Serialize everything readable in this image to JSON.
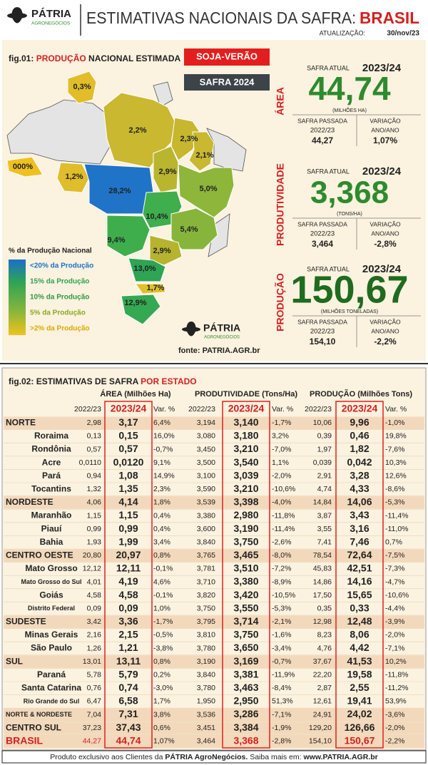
{
  "header": {
    "brand": "PÁTRIA",
    "brand_sub": "AGRONEGÓCIOS",
    "title": "ESTIMATIVAS NACIONAIS DA SAFRA:",
    "title_highlight": "BRASIL",
    "update_label": "ATUALIZAÇÃO:",
    "update_date": "30/nov/23"
  },
  "fig01": {
    "label": "fig.01:",
    "title_highlight": "PRODUÇÃO",
    "title": "NACIONAL ESTIMADA",
    "badge_crop": "SOJA-VERÃO",
    "badge_season": "SAFRA 2024",
    "map_labels": [
      "0,3%",
      "2,2%",
      "2,3%",
      "2,1%",
      "000%",
      "1,2%",
      "28,2%",
      "2,9%",
      "5,0%",
      "10,4%",
      "5,4%",
      "9,4%",
      "2,9%",
      "13,0%",
      "1,7%",
      "12,9%"
    ],
    "legend": {
      "title": "% da Produção Nacional",
      "items": [
        "<20% da Produção",
        "15% da Produção",
        "10% da Produção",
        "5% da Produção",
        ">2% da Produção"
      ]
    },
    "brand": "PÁTRIA",
    "brand_sub": "AGRONEGÓCIOS",
    "source": "fonte: PATRIA.AGR.br"
  },
  "summary": [
    {
      "section": "ÁREA",
      "current_label": "SAFRA ATUAL",
      "current_season": "2023/24",
      "current_value": "44,74",
      "unit": "(MILHÕES HA)",
      "previous_label": "SAFRA PASSADA",
      "previous_season": "2022/23",
      "previous_value": "44,27",
      "change_label": "VARIAÇÃO",
      "change_label2": "ANO/ANO",
      "change_value": "1,07%"
    },
    {
      "section": "PRODUTIVIDADE",
      "current_label": "SAFRA ATUAL",
      "current_season": "2023/24",
      "current_value": "3,368",
      "unit": "(TONS/HA)",
      "previous_label": "SAFRA PASSADA",
      "previous_season": "2022/23",
      "previous_value": "3,464",
      "change_label": "VARIAÇÃO",
      "change_label2": "ANO/ANO",
      "change_value": "-2,8%"
    },
    {
      "section": "PRODUÇÃO",
      "current_label": "SAFRA ATUAL",
      "current_season": "2023/24",
      "current_value": "150,67",
      "unit": "(MILHÕES TONELADAS)",
      "previous_label": "SAFRA PASSADA",
      "previous_season": "2022/23",
      "previous_value": "154,10",
      "change_label": "VARIAÇÃO",
      "change_label2": "ANO/ANO",
      "change_value": "-2,2%"
    }
  ],
  "fig02": {
    "label": "fig.02:",
    "title": "ESTIMATIVAS  DE SAFRA",
    "title_highlight": "POR ESTADO",
    "groups": [
      {
        "name": "ÁREA (Milhões Ha)",
        "columns": [
          "2022/23",
          "2023/24",
          "Var. %"
        ]
      },
      {
        "name": "PRODUTIVIDADE (Tons/Ha)",
        "columns": [
          "2022/23",
          "2023/24",
          "Var. %"
        ]
      },
      {
        "name": "PRODUÇÃO (Milhões Tons)",
        "columns": [
          "2022/23",
          "2023/24",
          "Var. %"
        ]
      }
    ],
    "rows": [
      [
        "NORTE",
        "2,98",
        "3,17",
        "6,4%",
        "3,194",
        "3,140",
        "-1,7%",
        "10,06",
        "9,96",
        "-1,0%"
      ],
      [
        "Roraima",
        "0,13",
        "0,15",
        "16,0%",
        "3,080",
        "3,180",
        "3,2%",
        "0,39",
        "0,46",
        "19,8%"
      ],
      [
        "Rondônia",
        "0,57",
        "0,57",
        "-0,7%",
        "3,450",
        "3,210",
        "-7,0%",
        "1,97",
        "1,82",
        "-7,6%"
      ],
      [
        "Acre",
        "0,0110",
        "0,0120",
        "9,1%",
        "3,500",
        "3,540",
        "1,1%",
        "0,039",
        "0,042",
        "10,3%"
      ],
      [
        "Pará",
        "0,94",
        "1,08",
        "14,9%",
        "3,100",
        "3,039",
        "-2,0%",
        "2,91",
        "3,28",
        "12,6%"
      ],
      [
        "Tocantins",
        "1,32",
        "1,35",
        "2,3%",
        "3,590",
        "3,210",
        "-10,6%",
        "4,74",
        "4,33",
        "-8,6%"
      ],
      [
        "NORDESTE",
        "4,06",
        "4,14",
        "1,8%",
        "3,539",
        "3,398",
        "-4,0%",
        "14,84",
        "14,06",
        "-5,3%"
      ],
      [
        "Maranhão",
        "1,15",
        "1,15",
        "0,4%",
        "3,380",
        "2,980",
        "-11,8%",
        "3,87",
        "3,43",
        "-11,4%"
      ],
      [
        "Piauí",
        "0,99",
        "0,99",
        "0,4%",
        "3,600",
        "3,190",
        "-11,4%",
        "3,55",
        "3,16",
        "-11,0%"
      ],
      [
        "Bahia",
        "1,93",
        "1,99",
        "3,4%",
        "3,840",
        "3,750",
        "-2,6%",
        "7,41",
        "7,46",
        "0,7%"
      ],
      [
        "CENTRO OESTE",
        "20,80",
        "20,97",
        "0,8%",
        "3,765",
        "3,465",
        "-8,0%",
        "78,54",
        "72,64",
        "-7,5%"
      ],
      [
        "Mato Grosso",
        "12,12",
        "12,11",
        "-0,1%",
        "3,781",
        "3,510",
        "-7,2%",
        "45,83",
        "42,51",
        "-7,3%"
      ],
      [
        "Mato Grosso do Sul",
        "4,01",
        "4,19",
        "4,6%",
        "3,710",
        "3,380",
        "-8,9%",
        "14,86",
        "14,16",
        "-4,7%"
      ],
      [
        "Goiás",
        "4,58",
        "4,58",
        "-0,1%",
        "3,820",
        "3,420",
        "-10,5%",
        "17,50",
        "15,65",
        "-10,6%"
      ],
      [
        "Distrito Federal",
        "0,09",
        "0,09",
        "1,0%",
        "3,750",
        "3,550",
        "-5,3%",
        "0,35",
        "0,33",
        "-4,4%"
      ],
      [
        "SUDESTE",
        "3,42",
        "3,36",
        "-1,7%",
        "3,795",
        "3,714",
        "-2,1%",
        "12,98",
        "12,48",
        "-3,9%"
      ],
      [
        "Minas Gerais",
        "2,16",
        "2,15",
        "-0,5%",
        "3,810",
        "3,750",
        "-1,6%",
        "8,23",
        "8,06",
        "-2,0%"
      ],
      [
        "São Paulo",
        "1,26",
        "1,21",
        "-3,8%",
        "3,780",
        "3,650",
        "-3,4%",
        "4,76",
        "4,42",
        "-7,1%"
      ],
      [
        "SUL",
        "13,01",
        "13,11",
        "0,8%",
        "3,190",
        "3,169",
        "-0,7%",
        "37,67",
        "41,53",
        "10,2%"
      ],
      [
        "Paraná",
        "5,78",
        "5,79",
        "0,2%",
        "3,840",
        "3,381",
        "-11,9%",
        "22,20",
        "19,58",
        "-11,8%"
      ],
      [
        "Santa Catarina",
        "0,76",
        "0,74",
        "-3,0%",
        "3,780",
        "3,463",
        "-8,4%",
        "2,87",
        "2,55",
        "-11,2%"
      ],
      [
        "Rio Grande do Sul",
        "6,47",
        "6,58",
        "1,7%",
        "1,950",
        "2,950",
        "51,3%",
        "12,61",
        "19,41",
        "53,9%"
      ],
      [
        "NORTE & NORDESTE",
        "7,04",
        "7,31",
        "3,8%",
        "3,536",
        "3,286",
        "-7,1%",
        "24,91",
        "24,02",
        "-3,6%"
      ],
      [
        "CENTRO SUL",
        "37,23",
        "37,43",
        "0,6%",
        "3,451",
        "3,384",
        "-1,9%",
        "129,20",
        "126,66",
        "-2,0%"
      ],
      [
        "BRASIL",
        "44,27",
        "44,74",
        "1,07%",
        "3,464",
        "3,368",
        "-2,8%",
        "154,10",
        "150,67",
        "-2,2%"
      ]
    ]
  },
  "footer": {
    "text": "Produto exclusivo aos Clientes da",
    "brand": "PÁTRIA AgroNegócios.",
    "text2": "Saiba mais em:",
    "url": "www.PATRIA.AGR.br"
  }
}
